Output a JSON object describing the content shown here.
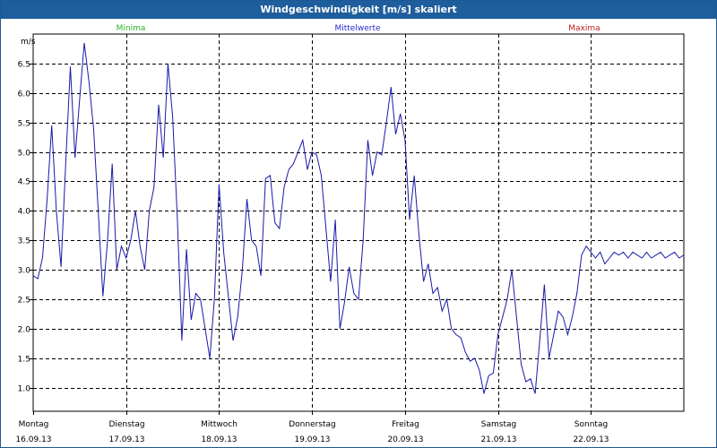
{
  "window": {
    "title": "Windgeschwindigkeit [m/s] skaliert"
  },
  "legend": {
    "min": "Minima",
    "mean": "Mittelwerte",
    "max": "Maxima"
  },
  "colors": {
    "titlebar": "#1f5e9c",
    "line": "#1a1aa8",
    "min": "#2db52d",
    "mean": "#2a2ad0",
    "max": "#c02020",
    "grid": "#000000"
  },
  "chart_data": {
    "type": "line",
    "title": "Windgeschwindigkeit [m/s] skaliert",
    "ylabel": "m/s",
    "ylim": [
      0.6,
      7.0
    ],
    "xlim": [
      0,
      7
    ],
    "yticks": [
      "1.0",
      "1.5",
      "2.0",
      "2.5",
      "3.0",
      "3.5",
      "4.0",
      "4.5",
      "5.0",
      "5.5",
      "6.0",
      "6.5"
    ],
    "yticks_values": [
      1.0,
      1.5,
      2.0,
      2.5,
      3.0,
      3.5,
      4.0,
      4.5,
      5.0,
      5.5,
      6.0,
      6.5
    ],
    "days": [
      {
        "day": "Montag",
        "date": "16.09.13"
      },
      {
        "day": "Dienstag",
        "date": "17.09.13"
      },
      {
        "day": "Mittwoch",
        "date": "18.09.13"
      },
      {
        "day": "Donnerstag",
        "date": "19.09.13"
      },
      {
        "day": "Freitag",
        "date": "20.09.13"
      },
      {
        "day": "Samstag",
        "date": "21.09.13"
      },
      {
        "day": "Sonntag",
        "date": "22.09.13"
      }
    ],
    "series": [
      {
        "name": "Mittelwerte",
        "x": [
          0,
          0.05,
          0.1,
          0.15,
          0.2,
          0.25,
          0.3,
          0.35,
          0.4,
          0.45,
          0.5,
          0.55,
          0.6,
          0.65,
          0.7,
          0.75,
          0.8,
          0.85,
          0.9,
          0.95,
          1.0,
          1.05,
          1.1,
          1.15,
          1.2,
          1.25,
          1.3,
          1.35,
          1.4,
          1.45,
          1.5,
          1.55,
          1.6,
          1.65,
          1.7,
          1.75,
          1.8,
          1.85,
          1.9,
          1.95,
          2.0,
          2.05,
          2.1,
          2.15,
          2.2,
          2.25,
          2.3,
          2.35,
          2.4,
          2.45,
          2.5,
          2.55,
          2.6,
          2.65,
          2.7,
          2.75,
          2.8,
          2.85,
          2.9,
          2.95,
          3.0,
          3.05,
          3.1,
          3.15,
          3.2,
          3.25,
          3.3,
          3.35,
          3.4,
          3.45,
          3.5,
          3.55,
          3.6,
          3.65,
          3.7,
          3.75,
          3.8,
          3.85,
          3.9,
          3.95,
          4.0,
          4.05,
          4.1,
          4.15,
          4.2,
          4.25,
          4.3,
          4.35,
          4.4,
          4.45,
          4.5,
          4.55,
          4.6,
          4.65,
          4.7,
          4.75,
          4.8,
          4.85,
          4.9,
          4.95,
          5.0,
          5.05,
          5.1,
          5.15,
          5.2,
          5.25,
          5.3,
          5.35,
          5.4,
          5.45,
          5.5,
          5.55,
          5.6,
          5.65,
          5.7,
          5.75,
          5.8,
          5.85,
          5.9,
          5.95,
          6.0,
          6.05,
          6.1,
          6.15,
          6.2,
          6.25,
          6.3,
          6.35,
          6.4,
          6.45,
          6.5,
          6.55,
          6.6,
          6.65,
          6.7,
          6.75,
          6.8,
          6.85,
          6.9,
          6.95,
          7.0
        ],
        "y": [
          2.9,
          2.85,
          3.2,
          4.2,
          5.45,
          4.0,
          3.05,
          4.8,
          6.45,
          4.9,
          5.9,
          6.85,
          6.2,
          5.4,
          4.0,
          2.55,
          3.5,
          4.8,
          3.0,
          3.4,
          3.2,
          3.5,
          4.0,
          3.4,
          3.0,
          4.0,
          4.4,
          5.8,
          4.9,
          6.5,
          5.6,
          3.9,
          1.8,
          3.35,
          2.15,
          2.6,
          2.5,
          2.0,
          1.5,
          2.5,
          4.45,
          3.3,
          2.55,
          1.8,
          2.2,
          3.0,
          4.2,
          3.5,
          3.4,
          2.9,
          4.55,
          4.6,
          3.8,
          3.7,
          4.4,
          4.7,
          4.8,
          5.0,
          5.2,
          4.7,
          5.0,
          4.95,
          4.6,
          3.7,
          2.8,
          3.85,
          2.0,
          2.45,
          3.05,
          2.6,
          2.5,
          3.5,
          5.2,
          4.6,
          5.0,
          4.95,
          5.5,
          6.1,
          5.3,
          5.65,
          5.2,
          3.85,
          4.6,
          3.6,
          2.8,
          3.1,
          2.6,
          2.7,
          2.3,
          2.5,
          2.0,
          1.9,
          1.85,
          1.6,
          1.45,
          1.5,
          1.3,
          0.9,
          1.2,
          1.25,
          1.9,
          2.2,
          2.5,
          3.0,
          2.2,
          1.4,
          1.1,
          1.15,
          0.9,
          1.8,
          2.75,
          1.5,
          1.9,
          2.3,
          2.2,
          1.9,
          2.2,
          2.6,
          3.25,
          3.4,
          3.3,
          3.2,
          3.3,
          3.1,
          3.2,
          3.3,
          3.25,
          3.3,
          3.2,
          3.3,
          3.25,
          3.2,
          3.3,
          3.2,
          3.25,
          3.3,
          3.2,
          3.25,
          3.3,
          3.2,
          3.25
        ]
      }
    ]
  }
}
